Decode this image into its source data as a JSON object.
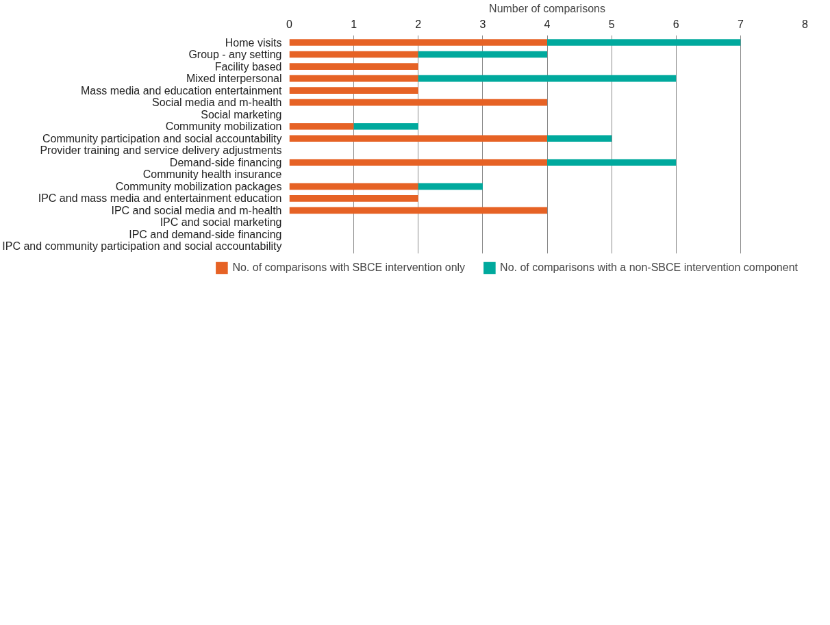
{
  "chart_data": {
    "type": "bar",
    "orientation": "horizontal",
    "stacked": true,
    "xlabel": "Number of comparisons",
    "categories": [
      "Home visits",
      "Group - any setting",
      "Facility based",
      "Mixed interpersonal",
      "Mass media and education entertainment",
      "Social media and m-health",
      "Social marketing",
      "Community mobilization",
      "Community participation and social accountability",
      "Provider training and service delivery adjustments",
      "Demand-side financing",
      "Community health insurance",
      "Community mobilization packages",
      "IPC and mass media and entertainment education",
      "IPC and social media and m-health",
      "IPC and social marketing",
      "IPC and demand-side financing",
      "IPC and community participation and social accountability"
    ],
    "series": [
      {
        "name": "No. of comparisons with SBCE intervention only",
        "color": "#e66225",
        "values": [
          4,
          2,
          2,
          2,
          2,
          4,
          0,
          1,
          4,
          0,
          4,
          0,
          2,
          2,
          4,
          0,
          0,
          0
        ]
      },
      {
        "name": "No. of comparisons with a non-SBCE intervention component",
        "color": "#00a99d",
        "values": [
          3,
          2,
          0,
          4,
          0,
          0,
          0,
          1,
          1,
          0,
          2,
          0,
          1,
          0,
          0,
          0,
          0,
          0
        ]
      }
    ],
    "xlim": [
      0,
      8
    ],
    "xticks": [
      0,
      1,
      2,
      3,
      4,
      5,
      6,
      7,
      8
    ],
    "grid": "x",
    "legend": "bottom"
  }
}
